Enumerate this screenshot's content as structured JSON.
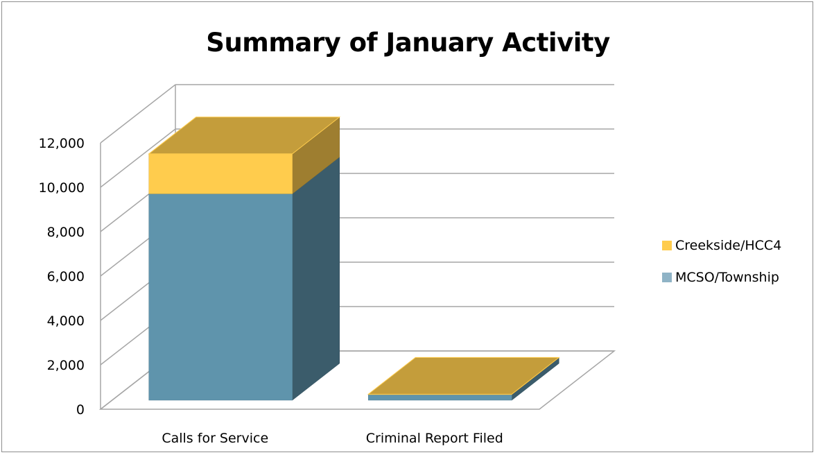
{
  "chart_data": {
    "type": "bar",
    "stacked": true,
    "three_d": true,
    "title": "Summary of January Activity",
    "categories": [
      "Calls for Service",
      "Criminal Report Filed"
    ],
    "series": [
      {
        "name": "MCSO/Township",
        "values": [
          9300,
          250
        ],
        "color": "#5f94ac"
      },
      {
        "name": "Creekside/HCC4",
        "values": [
          1800,
          20
        ],
        "color": "#ffcc4d"
      }
    ],
    "yticks": [
      "0",
      "2,000",
      "4,000",
      "6,000",
      "8,000",
      "10,000",
      "12,000"
    ],
    "ylim": [
      0,
      12000
    ],
    "grid": true,
    "legend_position": "right"
  }
}
